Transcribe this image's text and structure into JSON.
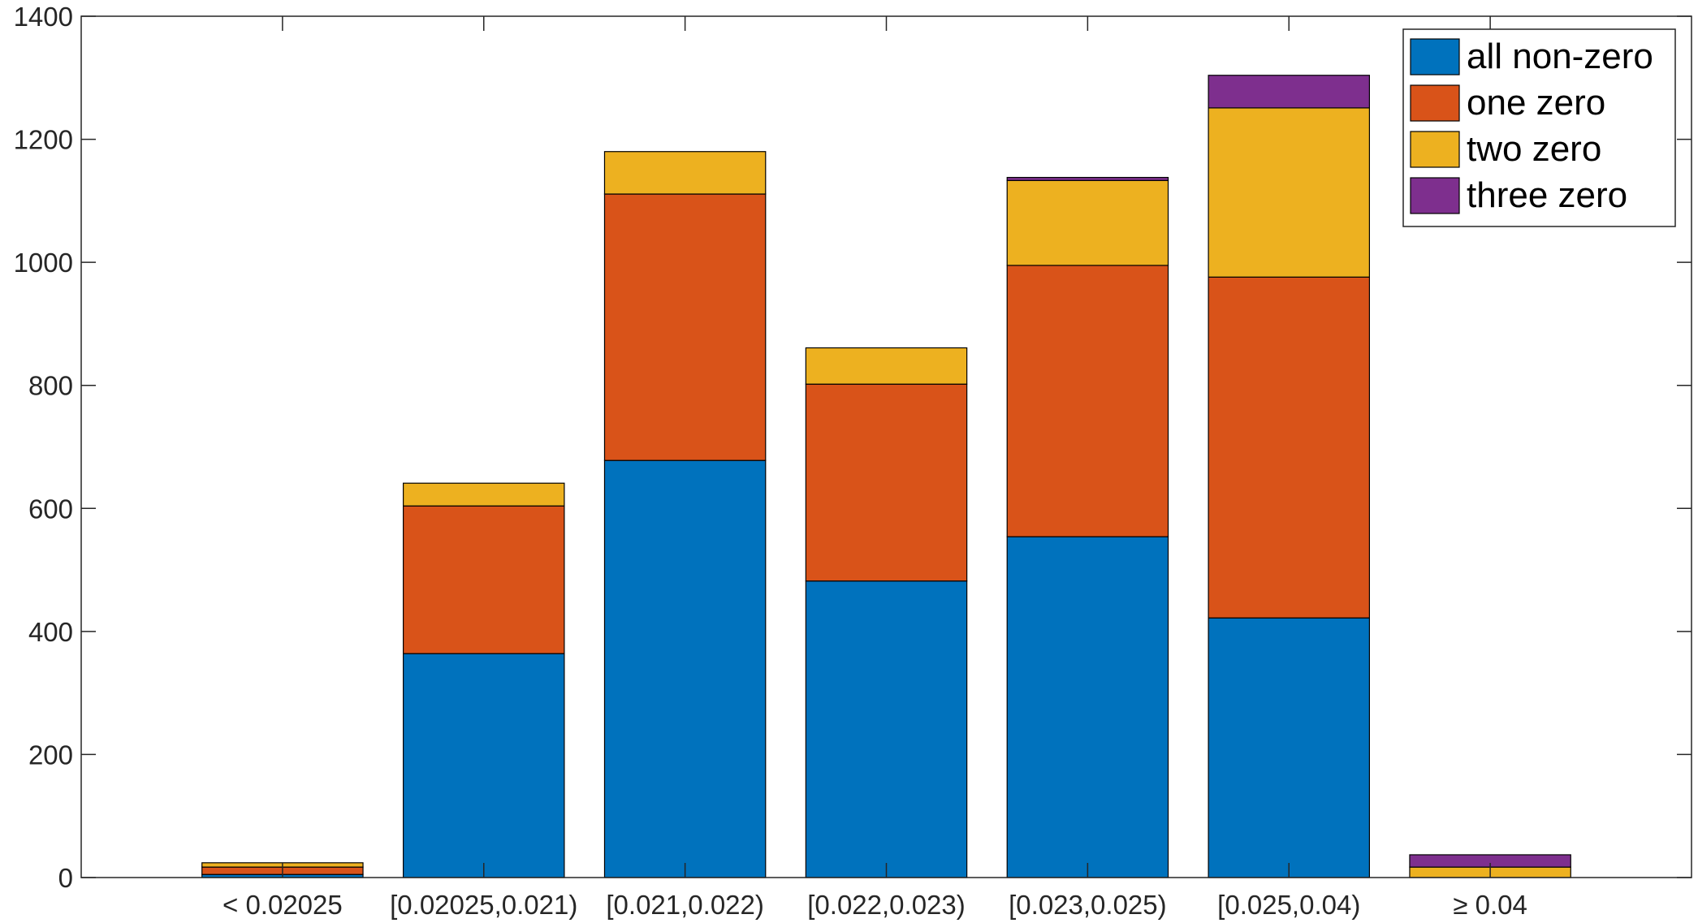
{
  "chart_data": {
    "type": "bar",
    "stacked": true,
    "title": "",
    "xlabel": "",
    "ylabel": "",
    "categories": [
      "< 0.02025",
      "[0.02025,0.021)",
      "[0.021,0.022)",
      "[0.022,0.023)",
      "[0.023,0.025)",
      "[0.025,0.04)",
      "≥ 0.04"
    ],
    "series": [
      {
        "name": "all non-zero",
        "color": "#0072BD",
        "values": [
          5,
          364,
          678,
          482,
          554,
          422,
          0
        ]
      },
      {
        "name": "one zero",
        "color": "#D95319",
        "values": [
          12,
          240,
          433,
          320,
          441,
          554,
          0
        ]
      },
      {
        "name": "two zero",
        "color": "#EDB120",
        "values": [
          7,
          37,
          69,
          59,
          138,
          275,
          17
        ]
      },
      {
        "name": "three zero",
        "color": "#7E2F8E",
        "values": [
          0,
          0,
          0,
          0,
          5,
          53,
          20
        ]
      }
    ],
    "ylim": [
      0,
      1400
    ],
    "yticks": [
      0,
      200,
      400,
      600,
      800,
      1000,
      1200,
      1400
    ],
    "grid": false,
    "legend_position": "top-right"
  }
}
